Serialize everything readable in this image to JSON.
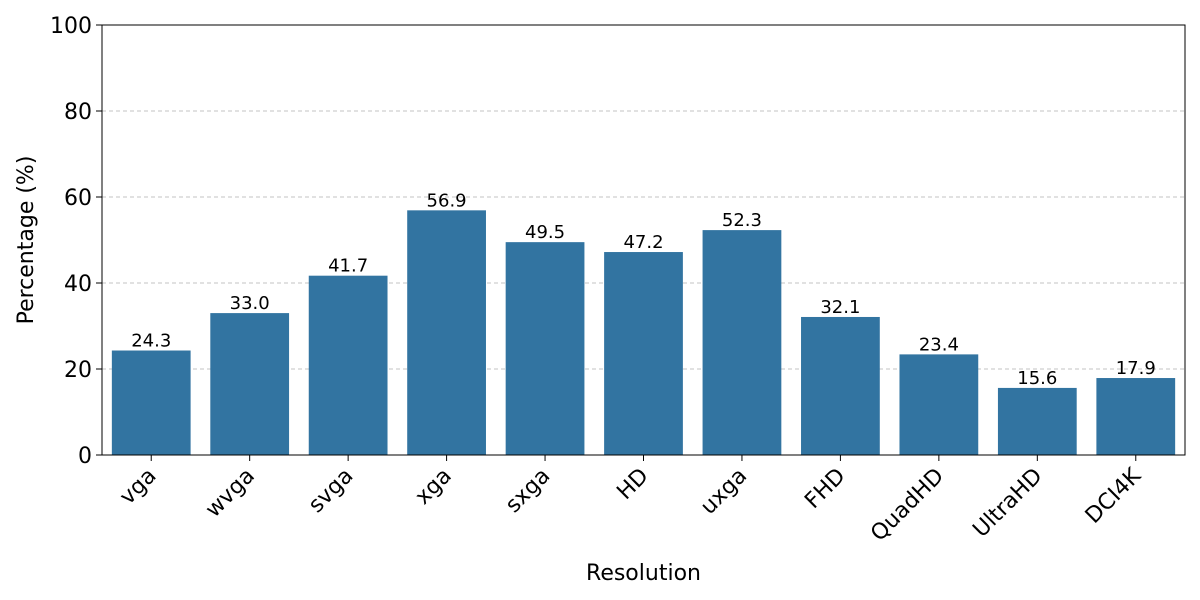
{
  "chart_data": {
    "type": "bar",
    "title": "",
    "xlabel": "Resolution",
    "ylabel": "Percentage (%)",
    "ylim": [
      0,
      100
    ],
    "yticks": [
      "0",
      "20",
      "40",
      "60",
      "80",
      "100"
    ],
    "grid": "y-dashed",
    "bar_color": "#3274a1",
    "categories": [
      "vga",
      "wvga",
      "svga",
      "xga",
      "sxga",
      "HD",
      "uxga",
      "FHD",
      "QuadHD",
      "UltraHD",
      "DCI4K"
    ],
    "values": [
      24.3,
      33.0,
      41.7,
      56.9,
      49.5,
      47.2,
      52.3,
      32.1,
      23.4,
      15.6,
      17.9
    ],
    "data_labels": [
      "24.3",
      "33.0",
      "41.7",
      "56.9",
      "49.5",
      "47.2",
      "52.3",
      "32.1",
      "23.4",
      "15.6",
      "17.9"
    ]
  }
}
